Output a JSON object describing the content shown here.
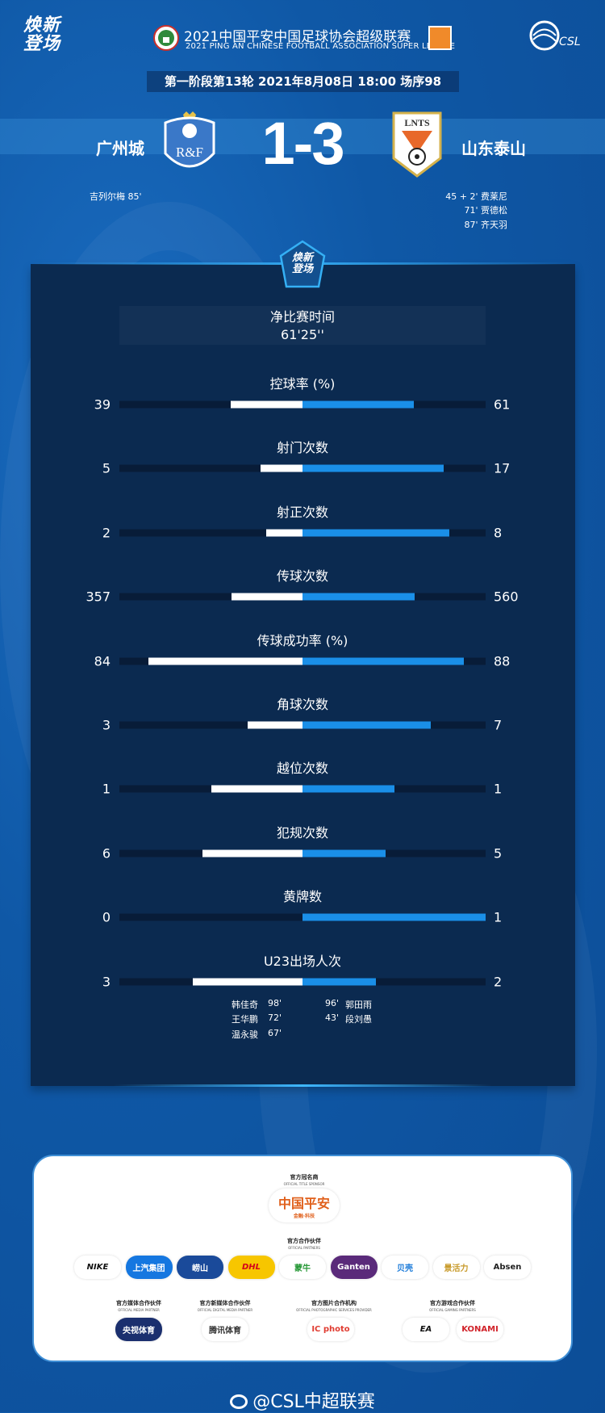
{
  "header": {
    "brand_logo_text": "焕新登场",
    "league_title": "2021中国平安中国足球协会超级联赛",
    "league_subtitle": "2021 PING AN CHINESE FOOTBALL ASSOCIATION SUPER LEAGUE",
    "csl_logo_text": "CSL",
    "match_info": "第一阶段第13轮  2021年8月08日 18:00 场序98"
  },
  "match": {
    "home_team": "广州城",
    "away_team": "山东泰山",
    "home_crest_text": "R&F",
    "away_crest_text": "LNTS",
    "score": "1-3",
    "home_scorers": [
      "吉列尔梅  85'"
    ],
    "away_scorers": [
      "45 + 2'  费莱尼",
      "71'  贾德松",
      "87'  齐天羽"
    ]
  },
  "stats_panel": {
    "badge_text": "焕新登场",
    "net_time_label": "净比赛时间",
    "net_time_value": "61'25''",
    "colors": {
      "home_bar": "#ffffff",
      "away_bar": "#1a8fe8",
      "track": "#081c38"
    },
    "stats": [
      {
        "label": "控球率 (%)",
        "home": "39",
        "away": "61",
        "home_fill_pct": 39,
        "away_fill_pct": 61
      },
      {
        "label": "射门次数",
        "home": "5",
        "away": "17",
        "home_fill_pct": 22.7,
        "away_fill_pct": 77.3
      },
      {
        "label": "射正次数",
        "home": "2",
        "away": "8",
        "home_fill_pct": 20,
        "away_fill_pct": 80
      },
      {
        "label": "传球次数",
        "home": "357",
        "away": "560",
        "home_fill_pct": 38.9,
        "away_fill_pct": 61.1
      },
      {
        "label": "传球成功率 (%)",
        "home": "84",
        "away": "88",
        "home_fill_pct": 84,
        "away_fill_pct": 88
      },
      {
        "label": "角球次数",
        "home": "3",
        "away": "7",
        "home_fill_pct": 30,
        "away_fill_pct": 70
      },
      {
        "label": "越位次数",
        "home": "1",
        "away": "1",
        "home_fill_pct": 50,
        "away_fill_pct": 50
      },
      {
        "label": "犯规次数",
        "home": "6",
        "away": "5",
        "home_fill_pct": 54.5,
        "away_fill_pct": 45.5
      },
      {
        "label": "黄牌数",
        "home": "0",
        "away": "1",
        "home_fill_pct": 0,
        "away_fill_pct": 100
      },
      {
        "label": "U23出场人次",
        "home": "3",
        "away": "2",
        "home_fill_pct": 60,
        "away_fill_pct": 40
      }
    ],
    "u23_home": [
      {
        "name": "韩佳奇",
        "minutes": "98'"
      },
      {
        "name": "王华鹏",
        "minutes": "72'"
      },
      {
        "name": "温永骏",
        "minutes": "67'"
      }
    ],
    "u23_away": [
      {
        "minutes": "96'",
        "name": "郭田雨"
      },
      {
        "minutes": "43'",
        "name": "段刘愚"
      }
    ]
  },
  "sponsors": {
    "title_sponsor": {
      "label": "官方冠名商",
      "sub": "OFFICIAL TITLE SPONSOR",
      "logo": "中国平安",
      "logo_sub": "金融·科技"
    },
    "partners": {
      "label": "官方合作伙伴",
      "sub": "OFFICIAL PARTNERS",
      "logos": [
        "NIKE",
        "上汽集团",
        "崂山",
        "DHL",
        "蒙牛",
        "Ganten",
        "贝壳",
        "景活力",
        "Absen"
      ]
    },
    "media": {
      "label": "官方媒体合作伙伴",
      "sub": "OFFICIAL MEDIA PARTNER",
      "logo": "央视体育"
    },
    "digital_media": {
      "label": "官方新媒体合作伙伴",
      "sub": "OFFICIAL DIGITAL MEDIA PARTNER",
      "logo": "腾讯体育"
    },
    "photo": {
      "label": "官方图片合作机构",
      "sub": "OFFICIAL PHOTOGRAPHIC SERVICES PROVIDER",
      "logo": "IC photo"
    },
    "gaming": {
      "label": "官方游戏合作伙伴",
      "sub": "OFFICIAL GAMING PARTNERS",
      "logos": [
        "EA",
        "KONAMI"
      ]
    }
  },
  "footer": {
    "weibo_handle": "@CSL中超联赛"
  }
}
